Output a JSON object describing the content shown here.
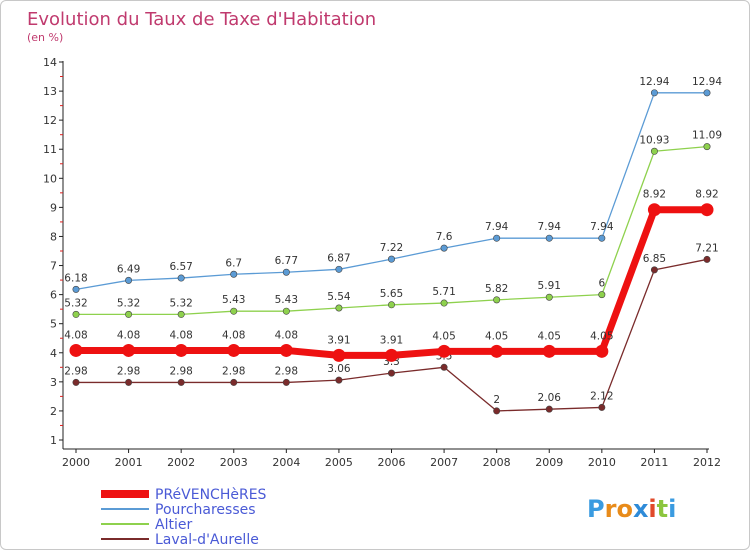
{
  "chart_data": {
    "type": "line",
    "title": "Evolution du Taux de Taxe d'Habitation",
    "subtitle": "(en %)",
    "xlabel": "",
    "ylabel": "",
    "categories": [
      "2000",
      "2001",
      "2002",
      "2003",
      "2004",
      "2005",
      "2006",
      "2007",
      "2008",
      "2009",
      "2010",
      "2011",
      "2012"
    ],
    "ylim": [
      1,
      14
    ],
    "y_ticks": [
      1,
      2,
      3,
      4,
      5,
      6,
      7,
      8,
      9,
      10,
      11,
      12,
      13,
      14
    ],
    "grid": false,
    "legend_position": "bottom-left",
    "series": [
      {
        "name": "Pourcharesses",
        "color": "#5b9bd5",
        "values": [
          6.18,
          6.49,
          6.57,
          6.7,
          6.77,
          6.87,
          7.22,
          7.6,
          7.94,
          7.94,
          7.94,
          12.94,
          12.94
        ],
        "labels": [
          "6.18",
          "6.49",
          "6.57",
          "6.7",
          "6.77",
          "6.87",
          "7.22",
          "7.6",
          "7.94",
          "7.94",
          "7.94",
          "12.94",
          "12.94"
        ]
      },
      {
        "name": "Altier",
        "color": "#8ed14d",
        "values": [
          5.32,
          5.32,
          5.32,
          5.43,
          5.43,
          5.54,
          5.65,
          5.71,
          5.82,
          5.91,
          6,
          10.93,
          11.09
        ],
        "labels": [
          "5.32",
          "5.32",
          "5.32",
          "5.43",
          "5.43",
          "5.54",
          "5.65",
          "5.71",
          "5.82",
          "5.91",
          "6",
          "10.93",
          "11.09"
        ]
      },
      {
        "name": "Laval-d'Aurelle",
        "color": "#7a2b2b",
        "values": [
          2.98,
          2.98,
          2.98,
          2.98,
          2.98,
          3.06,
          3.3,
          3.5,
          2,
          2.06,
          2.12,
          6.85,
          7.21
        ],
        "labels": [
          "2.98",
          "2.98",
          "2.98",
          "2.98",
          "2.98",
          "3.06",
          "3.3",
          "3.5",
          "2",
          "2.06",
          "2.12",
          "6.85",
          "7.21"
        ]
      },
      {
        "name": "PRéVENCHèRES",
        "color": "#ee1111",
        "values": [
          4.08,
          4.08,
          4.08,
          4.08,
          4.08,
          3.91,
          3.91,
          4.05,
          4.05,
          4.05,
          4.05,
          8.92,
          8.92
        ],
        "labels": [
          "4.08",
          "4.08",
          "4.08",
          "4.08",
          "4.08",
          "3.91",
          "3.91",
          "4.05",
          "4.05",
          "4.05",
          "4.05",
          "8.92",
          "8.92"
        ]
      }
    ],
    "legend_order": [
      "PRéVENCHèRES",
      "Pourcharesses",
      "Altier",
      "Laval-d'Aurelle"
    ]
  },
  "logo": {
    "text": "Proxiti",
    "letters": [
      "P",
      "r",
      "o",
      "x",
      "i",
      "t",
      "i"
    ],
    "colors": [
      "#3a9be0",
      "#e88b1a",
      "#e88b1a",
      "#2e8bd8",
      "#e04a2a",
      "#8cc63e",
      "#3a9be0"
    ]
  }
}
